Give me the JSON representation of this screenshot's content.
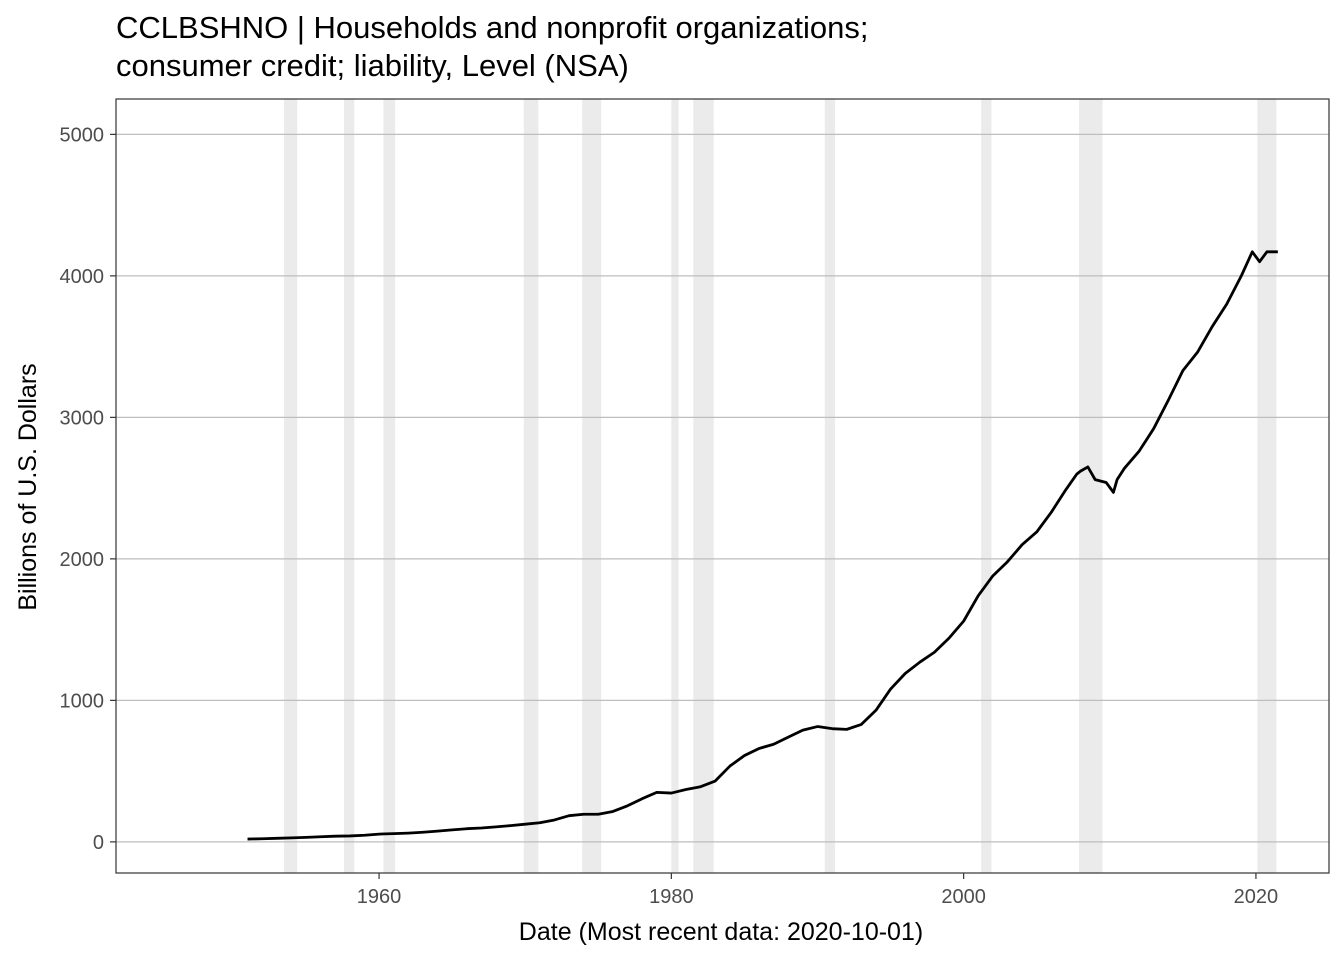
{
  "chart_data": {
    "type": "line",
    "title_lines": [
      "CCLBSHNO | Households and nonprofit organizations;",
      "consumer credit; liability, Level (NSA)"
    ],
    "xlabel": "Date (Most recent data: 2020-10-01)",
    "ylabel": "Billions of U.S. Dollars",
    "xlim": [
      1942,
      2025
    ],
    "ylim": [
      -220,
      5250
    ],
    "x_ticks": [
      1960,
      1980,
      2000,
      2020
    ],
    "y_ticks": [
      0,
      1000,
      2000,
      3000,
      4000,
      5000
    ],
    "grid": true,
    "recessions": [
      [
        1953.5,
        1954.4
      ],
      [
        1957.6,
        1958.3
      ],
      [
        1960.3,
        1961.1
      ],
      [
        1969.9,
        1970.9
      ],
      [
        1973.9,
        1975.2
      ],
      [
        1980.0,
        1980.5
      ],
      [
        1981.5,
        1982.9
      ],
      [
        1990.5,
        1991.2
      ],
      [
        2001.2,
        2001.9
      ],
      [
        2007.9,
        2009.5
      ],
      [
        2020.1,
        2021.4
      ]
    ],
    "colors": {
      "line": "#000000",
      "recession": "#ebebeb",
      "grid": "#bebebe",
      "panel_border": "#333333"
    },
    "series": [
      {
        "x": [
          1951.0,
          1952.0,
          1953.0,
          1954.0,
          1955.0,
          1956.0,
          1957.0,
          1958.0,
          1959.0,
          1960.0,
          1961.0,
          1962.0,
          1963.0,
          1964.0,
          1965.0,
          1966.0,
          1967.0,
          1968.0,
          1969.0,
          1970.0,
          1971.0,
          1972.0,
          1973.0,
          1974.0,
          1975.0,
          1976.0,
          1977.0,
          1978.0,
          1979.0,
          1980.0,
          1981.0,
          1982.0,
          1983.0,
          1984.0,
          1985.0,
          1986.0,
          1987.0,
          1988.0,
          1989.0,
          1990.0,
          1991.0,
          1992.0,
          1993.0,
          1994.0,
          1995.0,
          1996.0,
          1997.0,
          1998.0,
          1999.0,
          2000.0,
          2001.0,
          2002.0,
          2003.0,
          2004.0,
          2005.0,
          2006.0,
          2007.0,
          2007.75,
          2008.0,
          2008.5,
          2009.0,
          2009.75,
          2010.25,
          2010.5,
          2011.0,
          2012.0,
          2013.0,
          2014.0,
          2015.0,
          2016.0,
          2017.0,
          2018.0,
          2019.0,
          2019.75,
          2020.25,
          2020.75,
          2021.5
        ],
        "values": [
          20,
          22,
          25,
          28,
          32,
          36,
          40,
          42,
          47,
          55,
          58,
          62,
          68,
          76,
          85,
          93,
          98,
          106,
          115,
          125,
          135,
          155,
          185,
          195,
          195,
          215,
          255,
          305,
          350,
          345,
          370,
          390,
          430,
          535,
          610,
          660,
          690,
          740,
          790,
          815,
          800,
          795,
          830,
          930,
          1080,
          1190,
          1270,
          1340,
          1440,
          1560,
          1740,
          1880,
          1980,
          2100,
          2190,
          2330,
          2490,
          2600,
          2620,
          2650,
          2560,
          2540,
          2470,
          2560,
          2640,
          2760,
          2920,
          3120,
          3330,
          3460,
          3640,
          3800,
          4000,
          4170,
          4100,
          4170,
          4170
        ]
      }
    ]
  }
}
